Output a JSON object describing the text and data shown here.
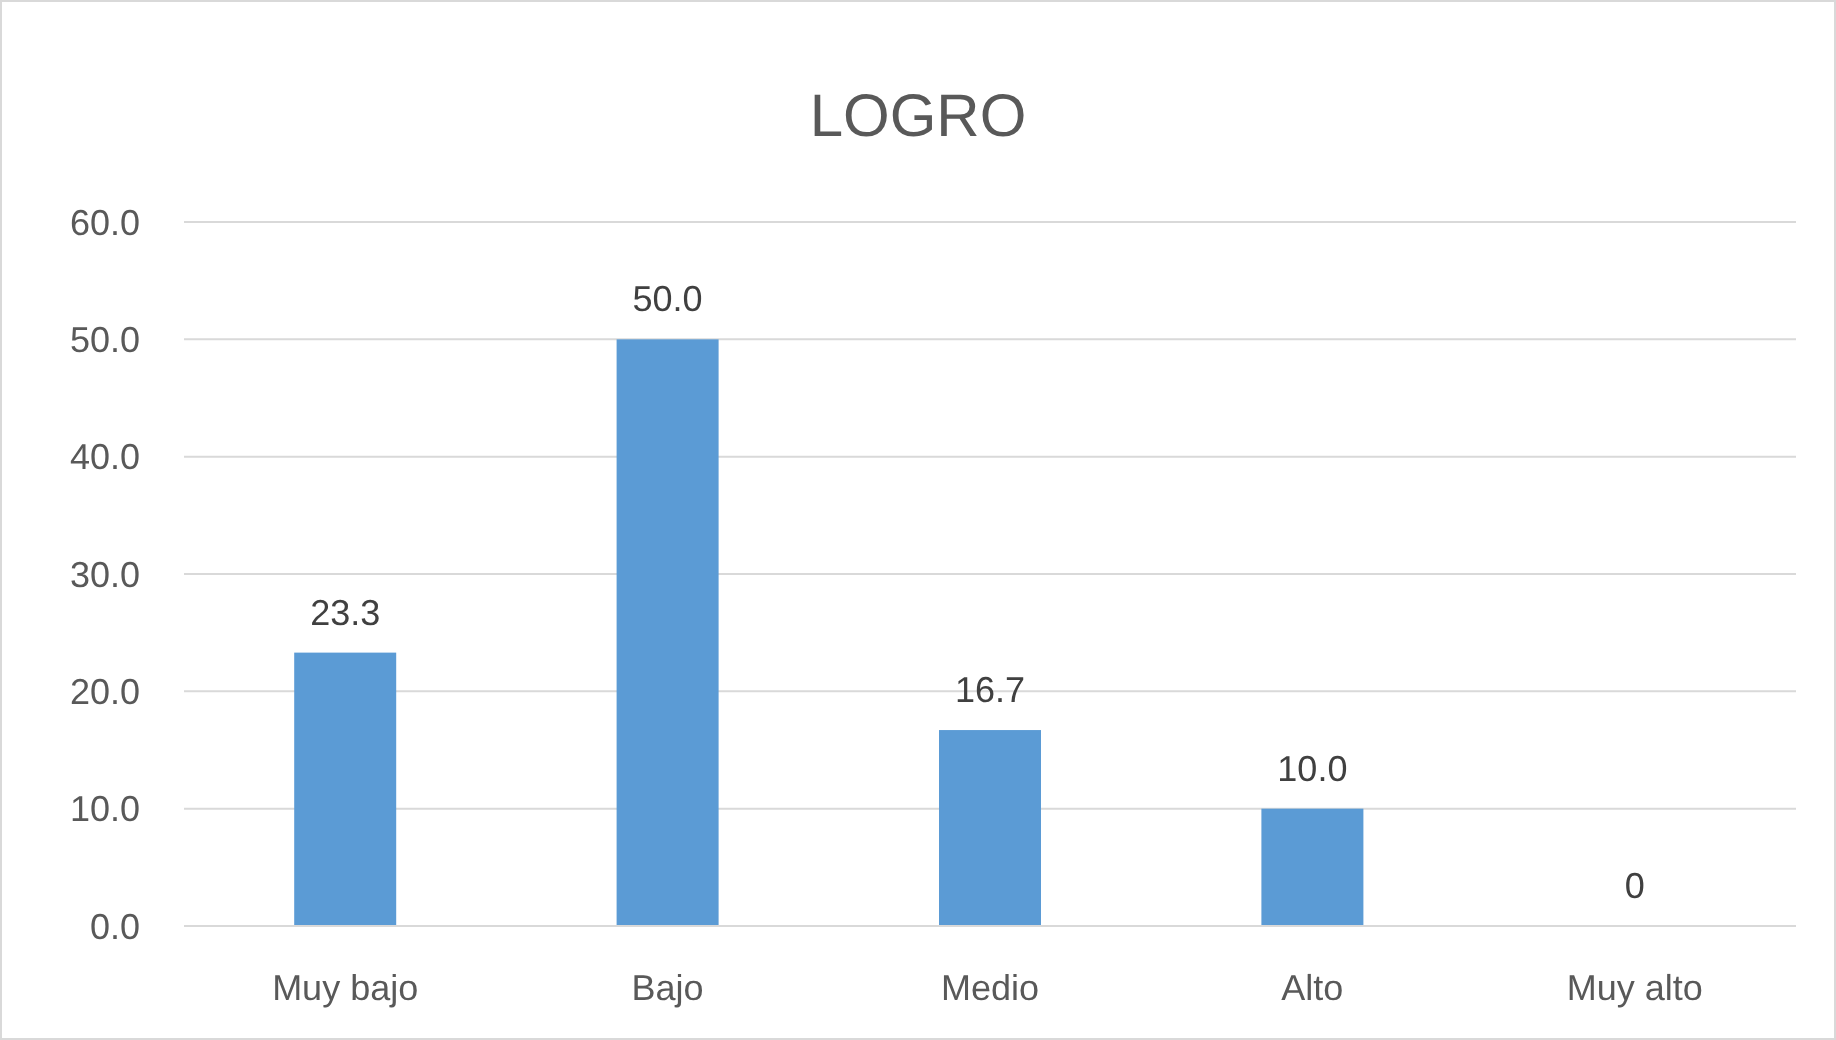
{
  "chart_data": {
    "type": "bar",
    "title": "LOGRO",
    "categories": [
      "Muy bajo",
      "Bajo",
      "Medio",
      "Alto",
      "Muy alto"
    ],
    "values": [
      23.3,
      50.0,
      16.7,
      10.0,
      0
    ],
    "value_labels": [
      "23.3",
      "50.0",
      "16.7",
      "10.0",
      "0"
    ],
    "color": "#5b9bd5",
    "ylim": [
      0,
      60
    ],
    "yticks": [
      {
        "value": 0,
        "label": "0.0"
      },
      {
        "value": 10,
        "label": "10.0"
      },
      {
        "value": 20,
        "label": "20.0"
      },
      {
        "value": 30,
        "label": "30.0"
      },
      {
        "value": 40,
        "label": "40.0"
      },
      {
        "value": 50,
        "label": "50.0"
      },
      {
        "value": 60,
        "label": "60.0"
      }
    ],
    "grid": "y"
  }
}
